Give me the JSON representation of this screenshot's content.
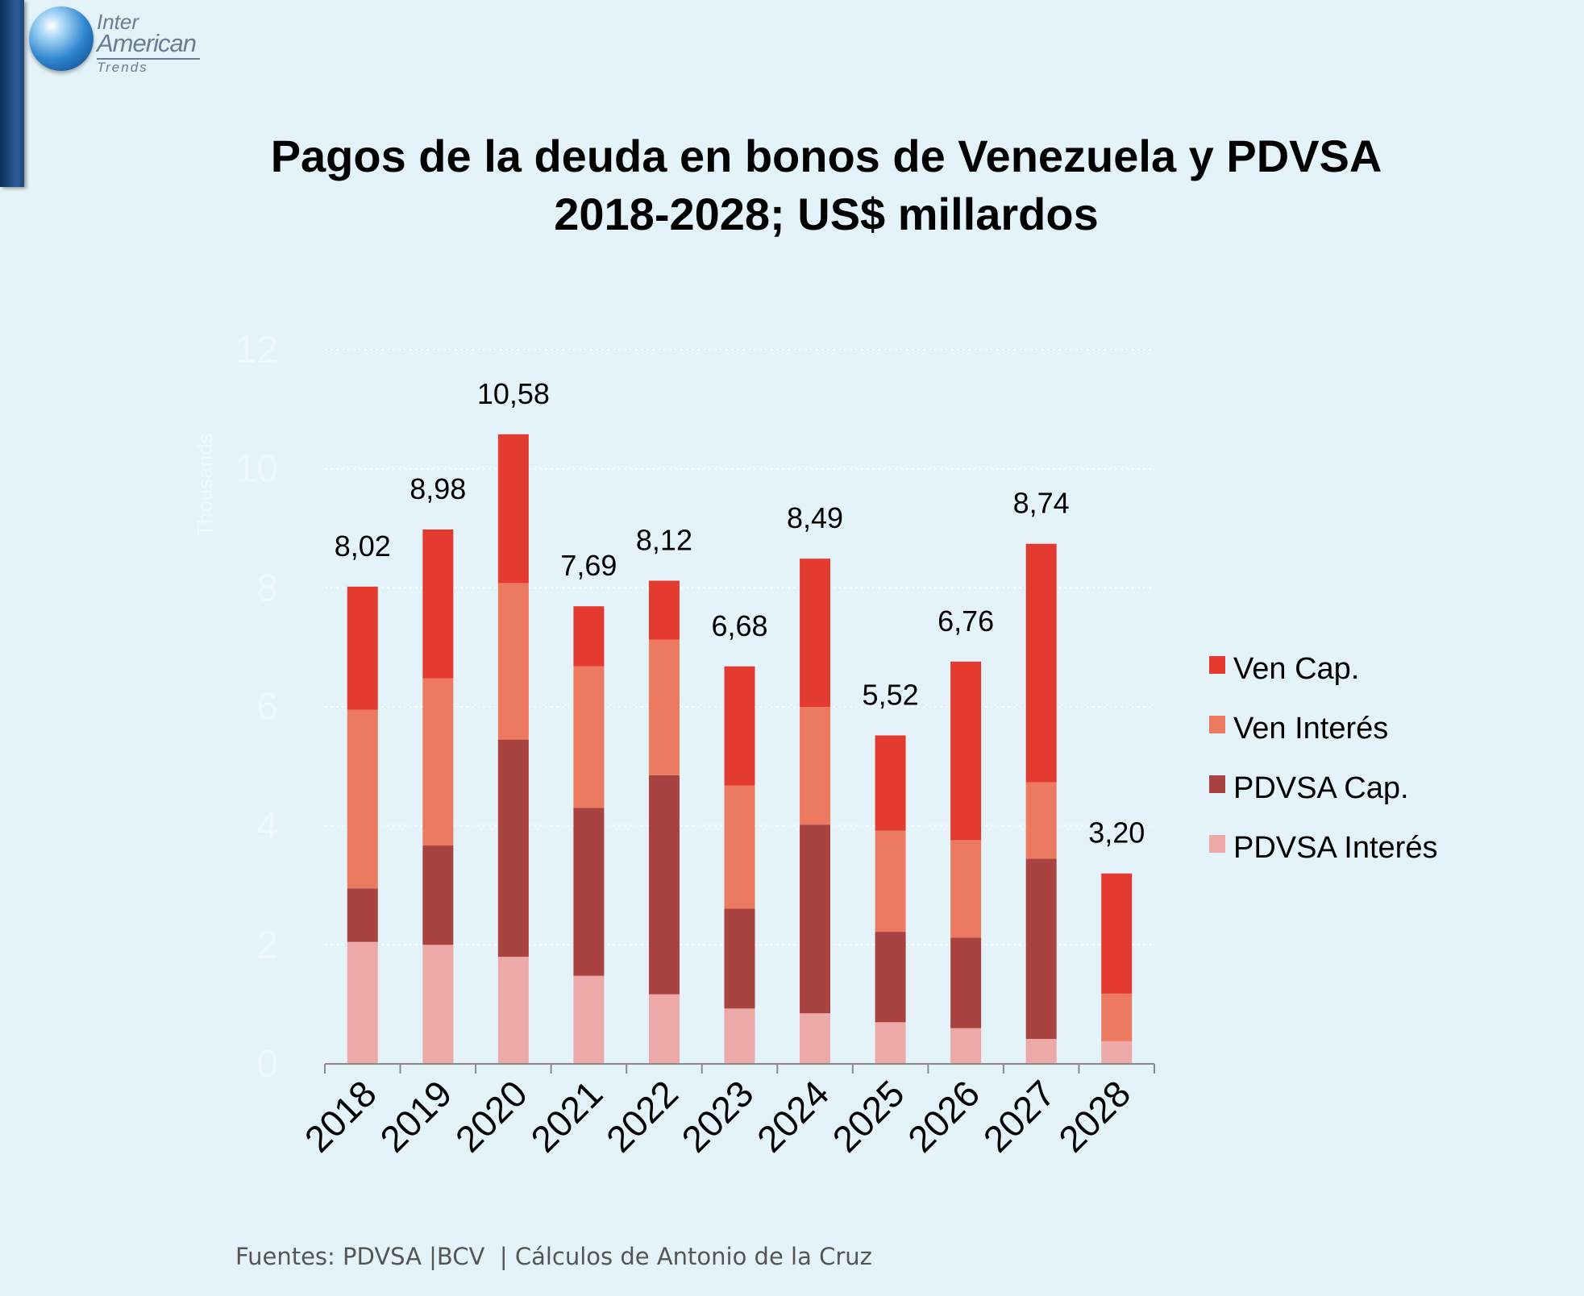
{
  "logo": {
    "line1": "Inter",
    "line2": "American",
    "line3": "Trends"
  },
  "title": {
    "line1": "Pagos de la deuda en bonos de Venezuela y PDVSA",
    "line2": "2018-2028; US$ millardos"
  },
  "footer": "Fuentes: PDVSA |BCV  | Cálculos de Antonio de la Cruz",
  "colors": {
    "background": "#e4f3f9",
    "ven_cap": "#e43b30",
    "ven_interes": "#ec7a60",
    "pdvsa_cap": "#a84342",
    "pdvsa_interes": "#eda9a8"
  },
  "chart_data": {
    "type": "bar",
    "stacked": true,
    "categories": [
      "2018",
      "2019",
      "2020",
      "2021",
      "2022",
      "2023",
      "2024",
      "2025",
      "2026",
      "2027",
      "2028"
    ],
    "ylabel": "Thousands",
    "ylim": [
      0,
      12
    ],
    "yticks": [
      0,
      2,
      4,
      6,
      8,
      10,
      12
    ],
    "grid": true,
    "legend_position": "right",
    "series": [
      {
        "name": "PDVSA Interés",
        "values": [
          2.05,
          2.0,
          1.8,
          1.48,
          1.17,
          0.93,
          0.85,
          0.7,
          0.6,
          0.42,
          0.38
        ]
      },
      {
        "name": "PDVSA Cap.",
        "values": [
          0.9,
          1.67,
          3.65,
          2.82,
          3.68,
          1.68,
          3.17,
          1.52,
          1.52,
          3.03,
          0.0
        ]
      },
      {
        "name": "Ven Interés",
        "values": [
          3.0,
          2.81,
          2.63,
          2.38,
          2.28,
          2.07,
          1.98,
          1.7,
          1.64,
          1.28,
          0.8
        ]
      },
      {
        "name": "Ven Cap.",
        "values": [
          2.07,
          2.5,
          2.5,
          1.01,
          0.99,
          2.0,
          2.49,
          1.6,
          3.0,
          4.01,
          2.02
        ]
      }
    ],
    "totals": [
      "8,02",
      "8,98",
      "10,58",
      "7,69",
      "8,12",
      "6,68",
      "8,49",
      "5,52",
      "6,76",
      "8,74",
      "3,20"
    ],
    "legend": [
      "Ven Cap.",
      "Ven Interés",
      "PDVSA Cap.",
      "PDVSA Interés"
    ]
  }
}
